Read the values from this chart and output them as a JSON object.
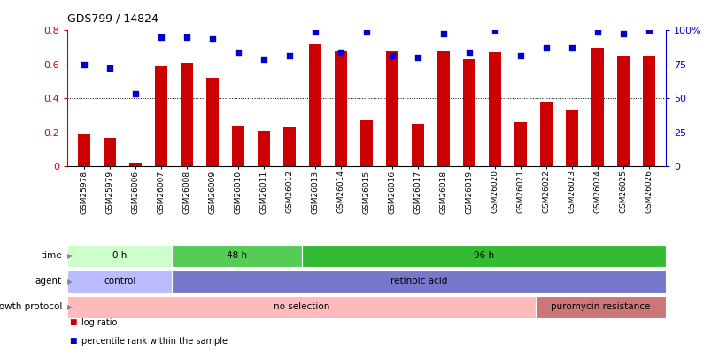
{
  "title": "GDS799 / 14824",
  "samples": [
    "GSM25978",
    "GSM25979",
    "GSM26006",
    "GSM26007",
    "GSM26008",
    "GSM26009",
    "GSM26010",
    "GSM26011",
    "GSM26012",
    "GSM26013",
    "GSM26014",
    "GSM26015",
    "GSM26016",
    "GSM26017",
    "GSM26018",
    "GSM26019",
    "GSM26020",
    "GSM26021",
    "GSM26022",
    "GSM26023",
    "GSM26024",
    "GSM26025",
    "GSM26026"
  ],
  "log_ratio": [
    0.19,
    0.17,
    0.02,
    0.59,
    0.61,
    0.52,
    0.24,
    0.21,
    0.23,
    0.72,
    0.68,
    0.27,
    0.68,
    0.25,
    0.68,
    0.63,
    0.67,
    0.26,
    0.38,
    0.33,
    0.7,
    0.65,
    0.65
  ],
  "percentile_left_axis": [
    0.6,
    0.58,
    0.43,
    0.76,
    0.76,
    0.75,
    0.67,
    0.63,
    0.65,
    0.79,
    0.67,
    0.79,
    0.65,
    0.64,
    0.78,
    0.67,
    0.8,
    0.65,
    0.7,
    0.7,
    0.79,
    0.78,
    0.8
  ],
  "bar_color": "#cc0000",
  "square_color": "#0000cc",
  "ylim_left": [
    0,
    0.8
  ],
  "left_yticks": [
    0,
    0.2,
    0.4,
    0.6,
    0.8
  ],
  "right_ytick_vals": [
    0,
    0.2,
    0.4,
    0.6,
    0.8
  ],
  "right_ytick_labels": [
    "0",
    "25",
    "50",
    "75",
    "100%"
  ],
  "time_groups": [
    {
      "label": "0 h",
      "start": 0,
      "end": 4,
      "color": "#ccffcc"
    },
    {
      "label": "48 h",
      "start": 4,
      "end": 9,
      "color": "#55cc55"
    },
    {
      "label": "96 h",
      "start": 9,
      "end": 23,
      "color": "#33bb33"
    }
  ],
  "agent_groups": [
    {
      "label": "control",
      "start": 0,
      "end": 4,
      "color": "#bbbbff"
    },
    {
      "label": "retinoic acid",
      "start": 4,
      "end": 23,
      "color": "#7777cc"
    }
  ],
  "growth_groups": [
    {
      "label": "no selection",
      "start": 0,
      "end": 18,
      "color": "#ffbbbb"
    },
    {
      "label": "puromycin resistance",
      "start": 18,
      "end": 23,
      "color": "#cc7777"
    }
  ],
  "row_labels": [
    "time",
    "agent",
    "growth protocol"
  ],
  "legend_items": [
    {
      "label": "log ratio",
      "color": "#cc0000"
    },
    {
      "label": "percentile rank within the sample",
      "color": "#0000cc"
    }
  ],
  "background_color": "#ffffff"
}
